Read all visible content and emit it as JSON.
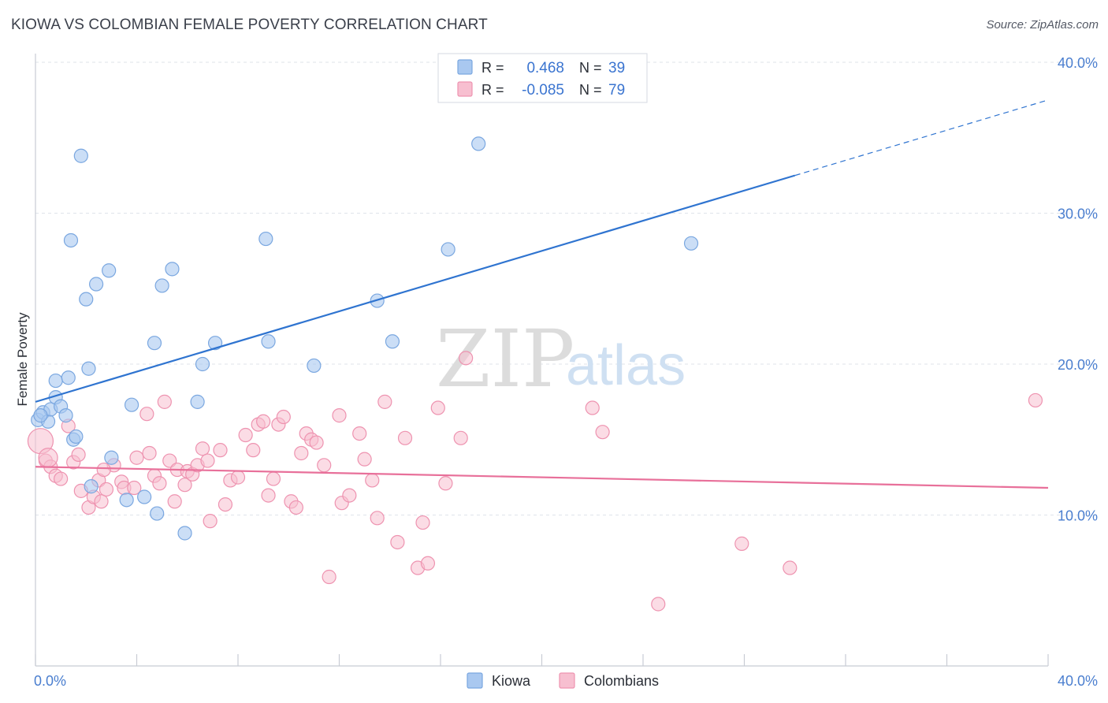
{
  "header": {
    "title": "KIOWA VS COLOMBIAN FEMALE POVERTY CORRELATION CHART",
    "source": "Source: ZipAtlas.com"
  },
  "watermark": {
    "zip": "ZIP",
    "atlas": "atlas"
  },
  "legend_top": {
    "rows": [
      {
        "r_label": "R =",
        "r_value": "0.468",
        "n_label": "N =",
        "n_value": "39",
        "color": "#a9c8f0"
      },
      {
        "r_label": "R =",
        "r_value": "-0.085",
        "n_label": "N =",
        "n_value": "79",
        "color": "#f5b8cb"
      }
    ]
  },
  "legend_bottom": {
    "items": [
      "Kiowa",
      "Colombians"
    ]
  },
  "colors": {
    "kiowa_fill": "#a9c8f0",
    "kiowa_stroke": "#7aa7e0",
    "kiowa_line": "#2f74d0",
    "colombian_fill": "#f7bfd0",
    "colombian_stroke": "#ee93b0",
    "colombian_line": "#e8709a",
    "grid": "#dfe3ea",
    "axis": "#c8ccd4"
  },
  "chart_data": {
    "type": "scatter",
    "title": "KIOWA VS COLOMBIAN FEMALE POVERTY CORRELATION CHART",
    "xlabel": "",
    "ylabel": "Female Poverty",
    "xlim": [
      0,
      40
    ],
    "ylim": [
      0,
      40
    ],
    "x_tick_labels": [
      "0.0%",
      "40.0%"
    ],
    "y_ticks": [
      10,
      20,
      30,
      40
    ],
    "y_tick_labels": [
      "10.0%",
      "20.0%",
      "30.0%",
      "40.0%"
    ],
    "grid": true,
    "legend_position": "top-center",
    "series": [
      {
        "name": "Kiowa",
        "r": 0.468,
        "n": 39,
        "trend": {
          "x0": 0,
          "y0": 17.5,
          "x1": 30,
          "y1": 32.5,
          "dashed_to_x": 40,
          "dashed_to_y": 37.5
        },
        "points": [
          [
            0.1,
            16.3
          ],
          [
            0.3,
            16.8
          ],
          [
            0.5,
            16.2
          ],
          [
            0.6,
            17.0
          ],
          [
            0.8,
            18.9
          ],
          [
            0.8,
            17.8
          ],
          [
            1.0,
            17.2
          ],
          [
            1.2,
            16.6
          ],
          [
            1.3,
            19.1
          ],
          [
            1.5,
            15.0
          ],
          [
            1.6,
            15.2
          ],
          [
            1.8,
            33.8
          ],
          [
            1.4,
            28.2
          ],
          [
            2.0,
            24.3
          ],
          [
            2.1,
            19.7
          ],
          [
            2.4,
            25.3
          ],
          [
            2.2,
            11.9
          ],
          [
            2.9,
            26.2
          ],
          [
            3.0,
            13.8
          ],
          [
            3.6,
            11.0
          ],
          [
            3.8,
            17.3
          ],
          [
            4.3,
            11.2
          ],
          [
            4.7,
            21.4
          ],
          [
            4.8,
            10.1
          ],
          [
            5.0,
            25.2
          ],
          [
            5.4,
            26.3
          ],
          [
            5.9,
            8.8
          ],
          [
            6.4,
            17.5
          ],
          [
            6.6,
            20.0
          ],
          [
            7.1,
            21.4
          ],
          [
            9.1,
            28.3
          ],
          [
            9.2,
            21.5
          ],
          [
            11.0,
            19.9
          ],
          [
            13.5,
            24.2
          ],
          [
            14.1,
            21.5
          ],
          [
            16.3,
            27.6
          ],
          [
            17.5,
            34.6
          ],
          [
            25.9,
            28.0
          ],
          [
            0.2,
            16.6
          ]
        ]
      },
      {
        "name": "Colombians",
        "r": -0.085,
        "n": 79,
        "trend": {
          "x0": 0,
          "y0": 13.2,
          "x1": 40,
          "y1": 11.8
        },
        "points": [
          [
            0.2,
            14.9
          ],
          [
            0.4,
            13.6
          ],
          [
            0.6,
            13.2
          ],
          [
            0.8,
            12.6
          ],
          [
            1.0,
            12.4
          ],
          [
            1.3,
            15.9
          ],
          [
            1.5,
            13.5
          ],
          [
            1.7,
            14.0
          ],
          [
            1.8,
            11.6
          ],
          [
            2.1,
            10.5
          ],
          [
            2.3,
            11.2
          ],
          [
            2.5,
            12.3
          ],
          [
            2.6,
            10.9
          ],
          [
            2.8,
            11.7
          ],
          [
            3.1,
            13.3
          ],
          [
            3.4,
            12.2
          ],
          [
            3.5,
            11.8
          ],
          [
            3.9,
            11.8
          ],
          [
            4.0,
            13.8
          ],
          [
            4.4,
            16.7
          ],
          [
            4.5,
            14.1
          ],
          [
            4.7,
            12.6
          ],
          [
            4.9,
            12.1
          ],
          [
            5.1,
            17.5
          ],
          [
            5.3,
            13.6
          ],
          [
            5.5,
            10.9
          ],
          [
            5.6,
            13.0
          ],
          [
            5.9,
            12.0
          ],
          [
            6.0,
            12.9
          ],
          [
            6.2,
            12.7
          ],
          [
            6.4,
            13.3
          ],
          [
            6.6,
            14.4
          ],
          [
            6.8,
            13.6
          ],
          [
            6.9,
            9.6
          ],
          [
            7.3,
            14.3
          ],
          [
            7.5,
            10.7
          ],
          [
            7.7,
            12.3
          ],
          [
            8.0,
            12.5
          ],
          [
            8.3,
            15.3
          ],
          [
            8.6,
            14.3
          ],
          [
            8.8,
            16.0
          ],
          [
            9.0,
            16.2
          ],
          [
            9.2,
            11.3
          ],
          [
            9.4,
            12.4
          ],
          [
            9.6,
            16.0
          ],
          [
            9.8,
            16.5
          ],
          [
            10.1,
            10.9
          ],
          [
            10.3,
            10.5
          ],
          [
            10.5,
            14.1
          ],
          [
            10.7,
            15.4
          ],
          [
            10.9,
            15.0
          ],
          [
            11.1,
            14.8
          ],
          [
            11.4,
            13.3
          ],
          [
            11.6,
            5.9
          ],
          [
            12.0,
            16.6
          ],
          [
            12.1,
            10.8
          ],
          [
            12.4,
            11.3
          ],
          [
            12.8,
            15.4
          ],
          [
            13.0,
            13.7
          ],
          [
            13.3,
            12.3
          ],
          [
            13.5,
            9.8
          ],
          [
            13.8,
            17.5
          ],
          [
            14.3,
            8.2
          ],
          [
            14.6,
            15.1
          ],
          [
            15.1,
            6.5
          ],
          [
            15.3,
            9.5
          ],
          [
            15.5,
            6.8
          ],
          [
            15.9,
            17.1
          ],
          [
            16.2,
            12.1
          ],
          [
            16.8,
            15.1
          ],
          [
            17.0,
            20.4
          ],
          [
            22.0,
            17.1
          ],
          [
            22.4,
            15.5
          ],
          [
            24.6,
            4.1
          ],
          [
            27.9,
            8.1
          ],
          [
            29.8,
            6.5
          ],
          [
            39.5,
            17.6
          ],
          [
            0.5,
            13.8
          ],
          [
            2.7,
            13.0
          ]
        ]
      }
    ]
  }
}
